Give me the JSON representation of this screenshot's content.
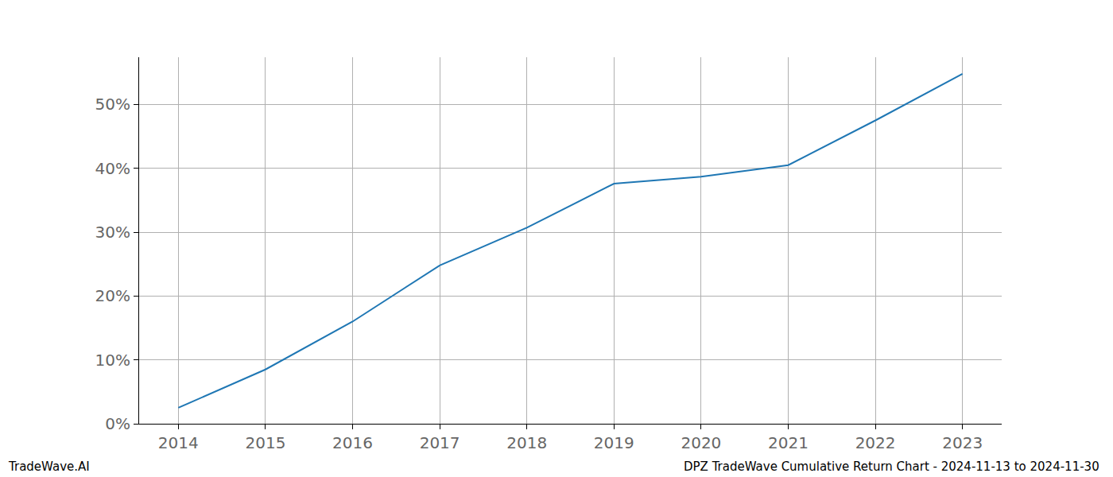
{
  "chart_data": {
    "type": "line",
    "x": [
      2014,
      2015,
      2016,
      2017,
      2018,
      2019,
      2020,
      2021,
      2022,
      2023
    ],
    "series": [
      {
        "name": "DPZ",
        "color": "#1f77b4",
        "values": [
          2.5,
          8.5,
          16.0,
          24.8,
          30.7,
          37.6,
          38.7,
          40.5,
          47.5,
          54.8
        ]
      }
    ],
    "xlim": [
      2013.55,
      2023.45
    ],
    "xticks": [
      2014,
      2015,
      2016,
      2017,
      2018,
      2019,
      2020,
      2021,
      2022,
      2023
    ],
    "ylim": [
      0,
      57.4
    ],
    "yticks": [
      {
        "value": 0,
        "label": "0%"
      },
      {
        "value": 10,
        "label": "10%"
      },
      {
        "value": 20,
        "label": "20%"
      },
      {
        "value": 30,
        "label": "30%"
      },
      {
        "value": 40,
        "label": "40%"
      },
      {
        "value": 50,
        "label": "50%"
      }
    ],
    "grid": true,
    "annotations": [
      "TradeWave.AI",
      "DPZ TradeWave Cumulative Return Chart - 2024-11-13 to 2024-11-30"
    ]
  }
}
